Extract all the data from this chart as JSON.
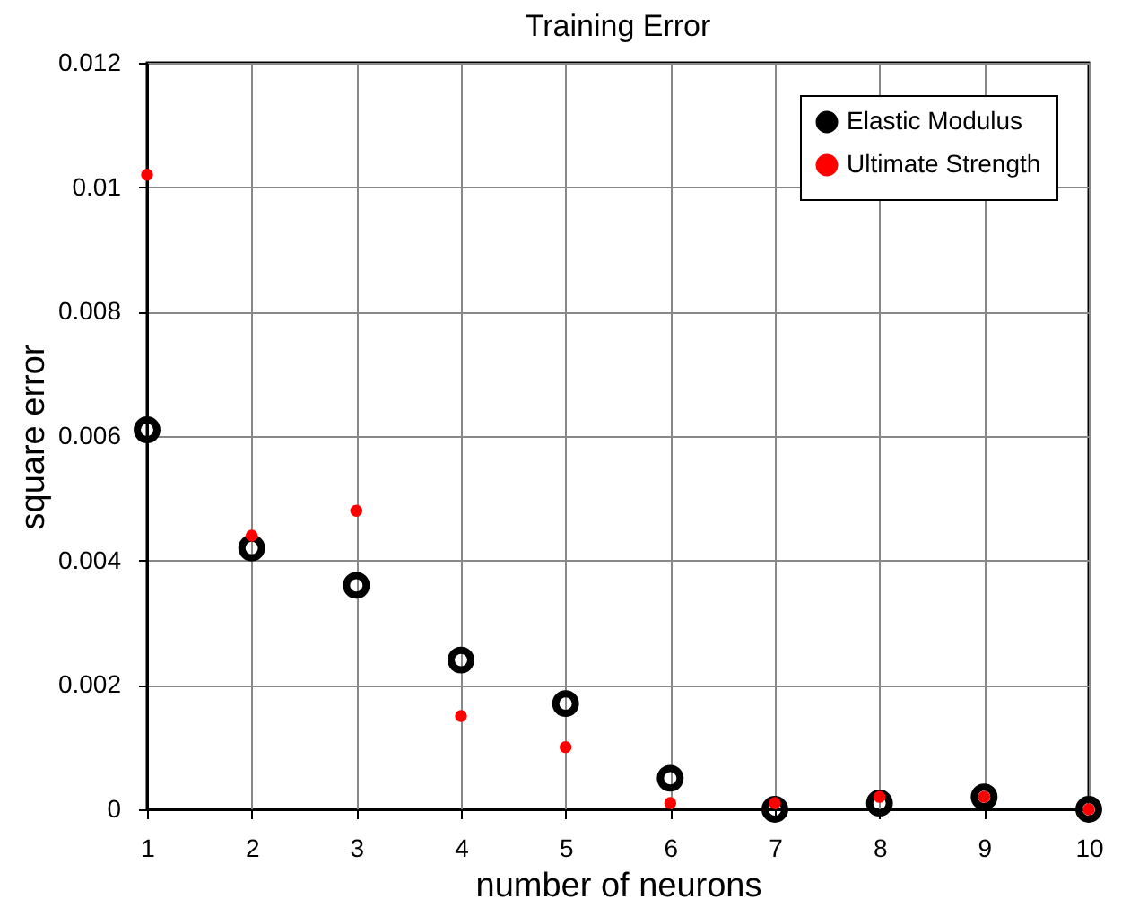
{
  "chart_data": {
    "type": "scatter",
    "title": "Training Error",
    "xlabel": "number of neurons",
    "ylabel": "square error",
    "x": [
      1,
      2,
      3,
      4,
      5,
      6,
      7,
      8,
      9,
      10
    ],
    "series": [
      {
        "name": "Elastic Modulus",
        "color": "#000000",
        "values": [
          0.0061,
          0.0042,
          0.0036,
          0.0024,
          0.0017,
          0.0005,
          0,
          0.0001,
          0.0002,
          0
        ]
      },
      {
        "name": "Ultimate Strength",
        "color": "#ff0000",
        "values": [
          0.0102,
          0.0044,
          0.0048,
          0.0015,
          0.001,
          0.0001,
          0.0001,
          0.0002,
          0.0002,
          0
        ]
      }
    ],
    "xlim": [
      1,
      10
    ],
    "xticks": [
      1,
      2,
      3,
      4,
      5,
      6,
      7,
      8,
      9,
      10
    ],
    "ylim": [
      0,
      0.012
    ],
    "yticks": [
      0,
      0.002,
      0.004,
      0.006,
      0.008,
      0.01,
      0.012
    ],
    "grid": true,
    "legend": "top right",
    "marker": "circle"
  }
}
